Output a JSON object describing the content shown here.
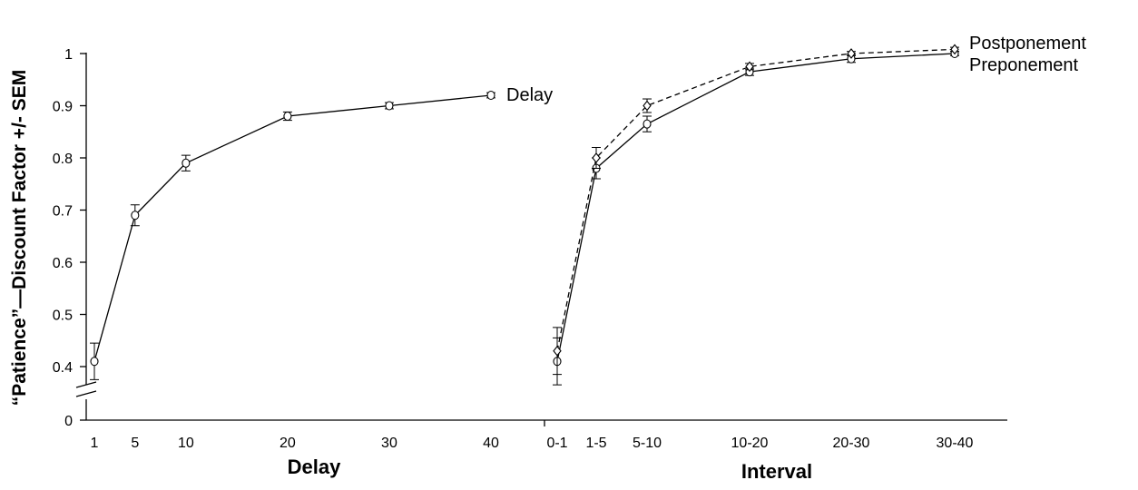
{
  "chart_data": [
    {
      "type": "line",
      "xlabel": "Delay",
      "ylabel": "“Patience”—Discount Factor +/- SEM",
      "y_ticks": [
        "0",
        "0.4",
        "0.5",
        "0.6",
        "0.7",
        "0.8",
        "0.9",
        "1"
      ],
      "ylim": [
        0.35,
        1.0
      ],
      "axis_break": true,
      "x": [
        1,
        5,
        10,
        20,
        30,
        40
      ],
      "x_tick_labels": [
        "1",
        "5",
        "10",
        "20",
        "30",
        "40"
      ],
      "series": [
        {
          "name": "Delay",
          "style": "solid",
          "marker": "circle",
          "values": [
            0.41,
            0.69,
            0.79,
            0.88,
            0.9,
            0.92
          ],
          "sem": [
            0.035,
            0.02,
            0.015,
            0.008,
            0.006,
            0.005
          ]
        }
      ]
    },
    {
      "type": "line",
      "xlabel": "Interval",
      "categories": [
        "0-1",
        "1-5",
        "5-10",
        "10-20",
        "20-30",
        "30-40"
      ],
      "series": [
        {
          "name": "Postponement",
          "style": "dashed",
          "marker": "diamond",
          "values": [
            0.43,
            0.8,
            0.9,
            0.975,
            1.0,
            1.008
          ],
          "sem": [
            0.045,
            0.02,
            0.013,
            0.006,
            0.004,
            0.004
          ]
        },
        {
          "name": "Preponement",
          "style": "solid",
          "marker": "circle",
          "values": [
            0.41,
            0.78,
            0.865,
            0.965,
            0.99,
            1.0
          ],
          "sem": [
            0.045,
            0.02,
            0.015,
            0.007,
            0.007,
            0.004
          ]
        }
      ]
    }
  ]
}
